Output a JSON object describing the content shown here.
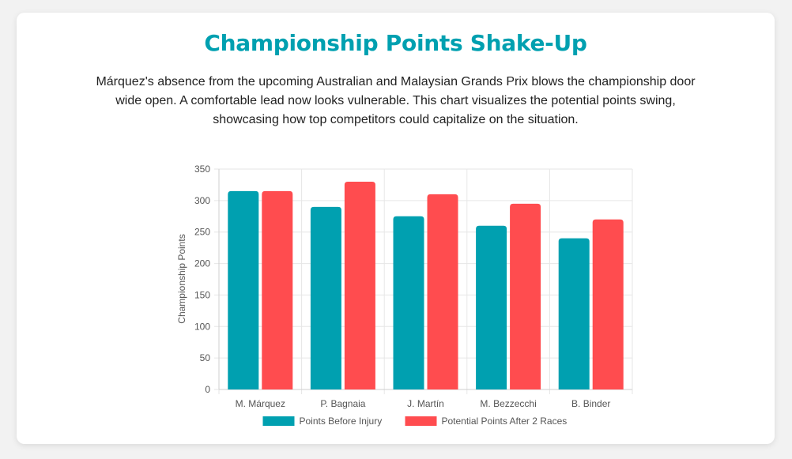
{
  "page": {
    "title": "Championship Points Shake-Up",
    "description": "Márquez's absence from the upcoming Australian and Malaysian Grands Prix blows the championship door wide open. A comfortable lead now looks vulnerable. This chart visualizes the potential points swing, showcasing how top competitors could capitalize on the situation."
  },
  "colors": {
    "title": "#00a0b0",
    "series_1": "#00a0b0",
    "series_2": "#ff4c4f",
    "grid": "#e6e6e6",
    "tick_text": "#555555"
  },
  "chart_data": {
    "type": "bar",
    "categories": [
      "M. Márquez",
      "P. Bagnaia",
      "J. Martín",
      "M. Bezzecchi",
      "B. Binder"
    ],
    "series": [
      {
        "name": "Points Before Injury",
        "values": [
          315,
          290,
          275,
          260,
          240
        ],
        "color": "#00a0b0"
      },
      {
        "name": "Potential Points After 2 Races",
        "values": [
          315,
          330,
          310,
          295,
          270
        ],
        "color": "#ff4c4f"
      }
    ],
    "xlabel": "",
    "ylabel": "Championship Points",
    "ylim": [
      0,
      350
    ],
    "yticks": [
      0,
      50,
      100,
      150,
      200,
      250,
      300,
      350
    ],
    "grid": true,
    "legend_position": "bottom"
  }
}
